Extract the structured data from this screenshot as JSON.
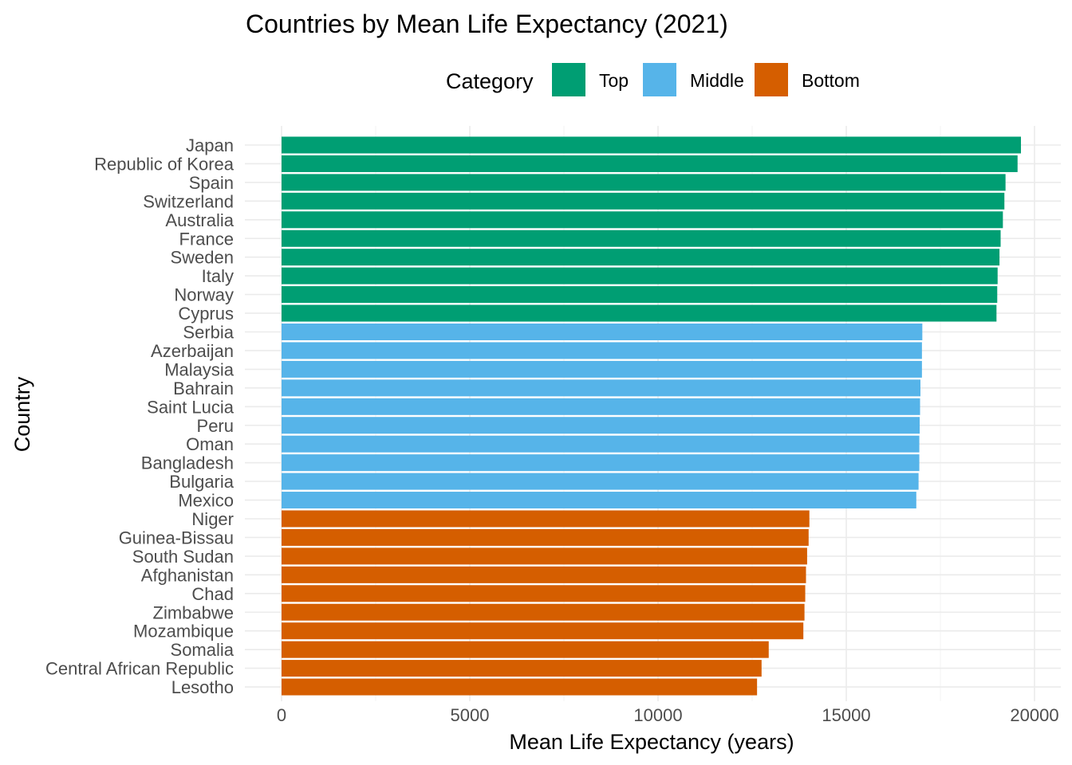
{
  "chart_data": {
    "type": "bar",
    "orientation": "horizontal",
    "title": "Countries by Mean Life Expectancy (2021)",
    "xlabel": "Mean Life Expectancy (years)",
    "ylabel": "Country",
    "xlim": [
      0,
      20000
    ],
    "xticks": [
      0,
      5000,
      10000,
      15000,
      20000
    ],
    "grid": true,
    "legend": {
      "title": "Category",
      "placement": "top",
      "entries": [
        {
          "name": "Top",
          "color": "#009E73"
        },
        {
          "name": "Middle",
          "color": "#56B4E9"
        },
        {
          "name": "Bottom",
          "color": "#D55E00"
        }
      ]
    },
    "categories": [
      "Japan",
      "Republic of Korea",
      "Spain",
      "Switzerland",
      "Australia",
      "France",
      "Sweden",
      "Italy",
      "Norway",
      "Cyprus",
      "Serbia",
      "Azerbaijan",
      "Malaysia",
      "Bahrain",
      "Saint Lucia",
      "Peru",
      "Oman",
      "Bangladesh",
      "Bulgaria",
      "Mexico",
      "Niger",
      "Guinea-Bissau",
      "South Sudan",
      "Afghanistan",
      "Chad",
      "Zimbabwe",
      "Mozambique",
      "Somalia",
      "Central African Republic",
      "Lesotho"
    ],
    "values": [
      19640,
      19550,
      19230,
      19200,
      19160,
      19100,
      19070,
      19020,
      19010,
      18990,
      17020,
      17010,
      17010,
      16970,
      16960,
      16950,
      16940,
      16940,
      16920,
      16860,
      14020,
      14000,
      13960,
      13930,
      13910,
      13890,
      13860,
      12940,
      12750,
      12630
    ],
    "groups": [
      "Top",
      "Top",
      "Top",
      "Top",
      "Top",
      "Top",
      "Top",
      "Top",
      "Top",
      "Top",
      "Middle",
      "Middle",
      "Middle",
      "Middle",
      "Middle",
      "Middle",
      "Middle",
      "Middle",
      "Middle",
      "Middle",
      "Bottom",
      "Bottom",
      "Bottom",
      "Bottom",
      "Bottom",
      "Bottom",
      "Bottom",
      "Bottom",
      "Bottom",
      "Bottom"
    ]
  }
}
